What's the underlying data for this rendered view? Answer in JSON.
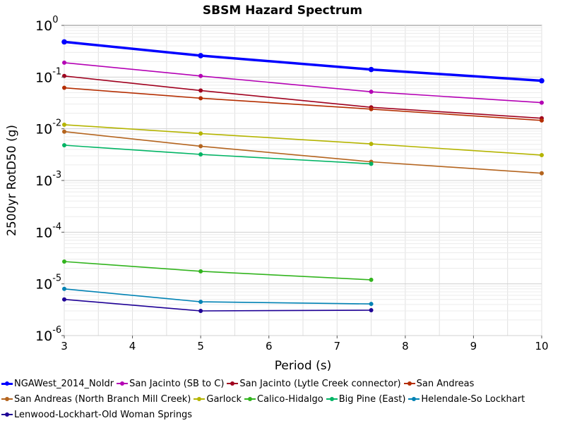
{
  "chart_data": {
    "type": "line",
    "title": "SBSM Hazard Spectrum",
    "xlabel": "Period (s)",
    "ylabel": "2500yr RotD50 (g)",
    "xlim": [
      3,
      10
    ],
    "ylim": [
      1e-06,
      1
    ],
    "yscale": "log",
    "grid": true,
    "legend_position": "bottom",
    "x_ticks": [
      "3",
      "4",
      "5",
      "6",
      "7",
      "8",
      "9",
      "10"
    ],
    "y_ticks": [
      {
        "base": "10",
        "exp": "0"
      },
      {
        "base": "10",
        "exp": "-1"
      },
      {
        "base": "10",
        "exp": "-2"
      },
      {
        "base": "10",
        "exp": "-3"
      },
      {
        "base": "10",
        "exp": "-4"
      },
      {
        "base": "10",
        "exp": "-5"
      },
      {
        "base": "10",
        "exp": "-6"
      }
    ],
    "series": [
      {
        "name": "NGAWest_2014_NoIdr",
        "color": "#0000ff",
        "bold": true,
        "x": [
          3,
          5,
          7.5,
          10
        ],
        "y": [
          0.48,
          0.26,
          0.14,
          0.085
        ]
      },
      {
        "name": "San Jacinto (SB to C)",
        "color": "#b400b4",
        "x": [
          3,
          5,
          7.5,
          10
        ],
        "y": [
          0.19,
          0.105,
          0.052,
          0.032
        ]
      },
      {
        "name": "San Jacinto (Lytle Creek connector)",
        "color": "#a0001e",
        "x": [
          3,
          5,
          7.5,
          10
        ],
        "y": [
          0.105,
          0.055,
          0.026,
          0.016
        ]
      },
      {
        "name": "San Andreas",
        "color": "#b42d00",
        "x": [
          3,
          5,
          7.5,
          10
        ],
        "y": [
          0.062,
          0.039,
          0.024,
          0.0145
        ]
      },
      {
        "name": "San Andreas (North Branch Mill Creek)",
        "color": "#b4641e",
        "x": [
          3,
          5,
          7.5,
          10
        ],
        "y": [
          0.0088,
          0.0046,
          0.0023,
          0.00138
        ]
      },
      {
        "name": "Garlock",
        "color": "#b4b400",
        "x": [
          3,
          5,
          7.5,
          10
        ],
        "y": [
          0.012,
          0.0081,
          0.0051,
          0.0031
        ]
      },
      {
        "name": "Calico-Hidalgo",
        "color": "#32b41e",
        "x": [
          3,
          5,
          7.5
        ],
        "y": [
          2.7e-05,
          1.75e-05,
          1.2e-05
        ]
      },
      {
        "name": "Big Pine (East)",
        "color": "#00b464",
        "x": [
          3,
          5,
          7.5
        ],
        "y": [
          0.0048,
          0.0032,
          0.0021
        ]
      },
      {
        "name": "Helendale-So Lockhart",
        "color": "#0082b4",
        "x": [
          3,
          5,
          7.5
        ],
        "y": [
          8e-06,
          4.5e-06,
          4.1e-06
        ]
      },
      {
        "name": "Lenwood-Lockhart-Old Woman Springs",
        "color": "#1e0096",
        "x": [
          3,
          5,
          7.5
        ],
        "y": [
          5e-06,
          3e-06,
          3.1e-06
        ]
      }
    ]
  }
}
